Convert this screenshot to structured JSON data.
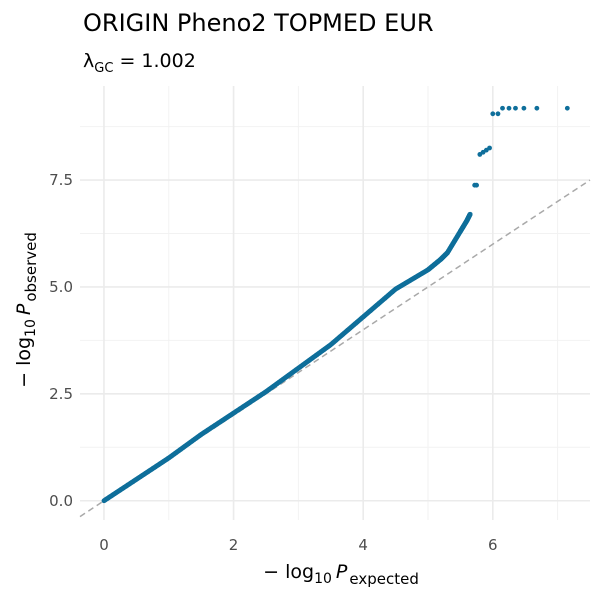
{
  "chart_data": {
    "type": "scatter",
    "title": "ORIGIN Pheno2 TOPMED EUR",
    "subtitle": {
      "prefix": "λ",
      "subscript": "GC",
      "suffix": " = 1.002"
    },
    "xlabel": {
      "prefix": "− log",
      "base": "10",
      "var": "P",
      "subscript": "expected"
    },
    "ylabel": {
      "prefix": "− log",
      "base": "10",
      "var": "P",
      "subscript": "observed"
    },
    "xlim": [
      -0.37,
      7.5
    ],
    "ylim": [
      -0.45,
      9.7
    ],
    "x_ticks": [
      0,
      2,
      4,
      6
    ],
    "x_tick_labels": [
      "0",
      "2",
      "4",
      "6"
    ],
    "y_ticks": [
      0,
      2.5,
      5,
      7.5
    ],
    "y_tick_labels": [
      "0.0",
      "2.5",
      "5.0",
      "7.5"
    ],
    "x_minor": [
      1,
      3,
      5,
      7
    ],
    "y_minor": [
      1.25,
      3.75,
      6.25,
      8.75
    ],
    "grid": true,
    "reference_line": {
      "slope": 1,
      "intercept": 0,
      "style": "dashed",
      "color": "#a9a9a9"
    },
    "point_color": "#0f6f9b",
    "curve": [
      [
        0,
        0
      ],
      [
        0.5,
        0.5
      ],
      [
        1,
        1
      ],
      [
        1.5,
        1.55
      ],
      [
        2,
        2.05
      ],
      [
        2.5,
        2.55
      ],
      [
        3,
        3.1
      ],
      [
        3.5,
        3.65
      ],
      [
        4,
        4.3
      ],
      [
        4.5,
        4.95
      ],
      [
        5,
        5.4
      ],
      [
        5.2,
        5.65
      ],
      [
        5.3,
        5.8
      ],
      [
        5.5,
        6.3
      ],
      [
        5.6,
        6.55
      ],
      [
        5.65,
        6.7
      ]
    ],
    "outliers": [
      [
        5.72,
        7.38
      ],
      [
        5.75,
        7.38
      ],
      [
        5.8,
        8.1
      ],
      [
        5.85,
        8.15
      ],
      [
        5.9,
        8.2
      ],
      [
        5.95,
        8.25
      ],
      [
        6.0,
        9.05
      ],
      [
        6.08,
        9.05
      ],
      [
        6.15,
        9.18
      ],
      [
        6.25,
        9.18
      ],
      [
        6.35,
        9.18
      ],
      [
        6.48,
        9.18
      ],
      [
        6.68,
        9.18
      ],
      [
        7.15,
        9.18
      ]
    ]
  }
}
